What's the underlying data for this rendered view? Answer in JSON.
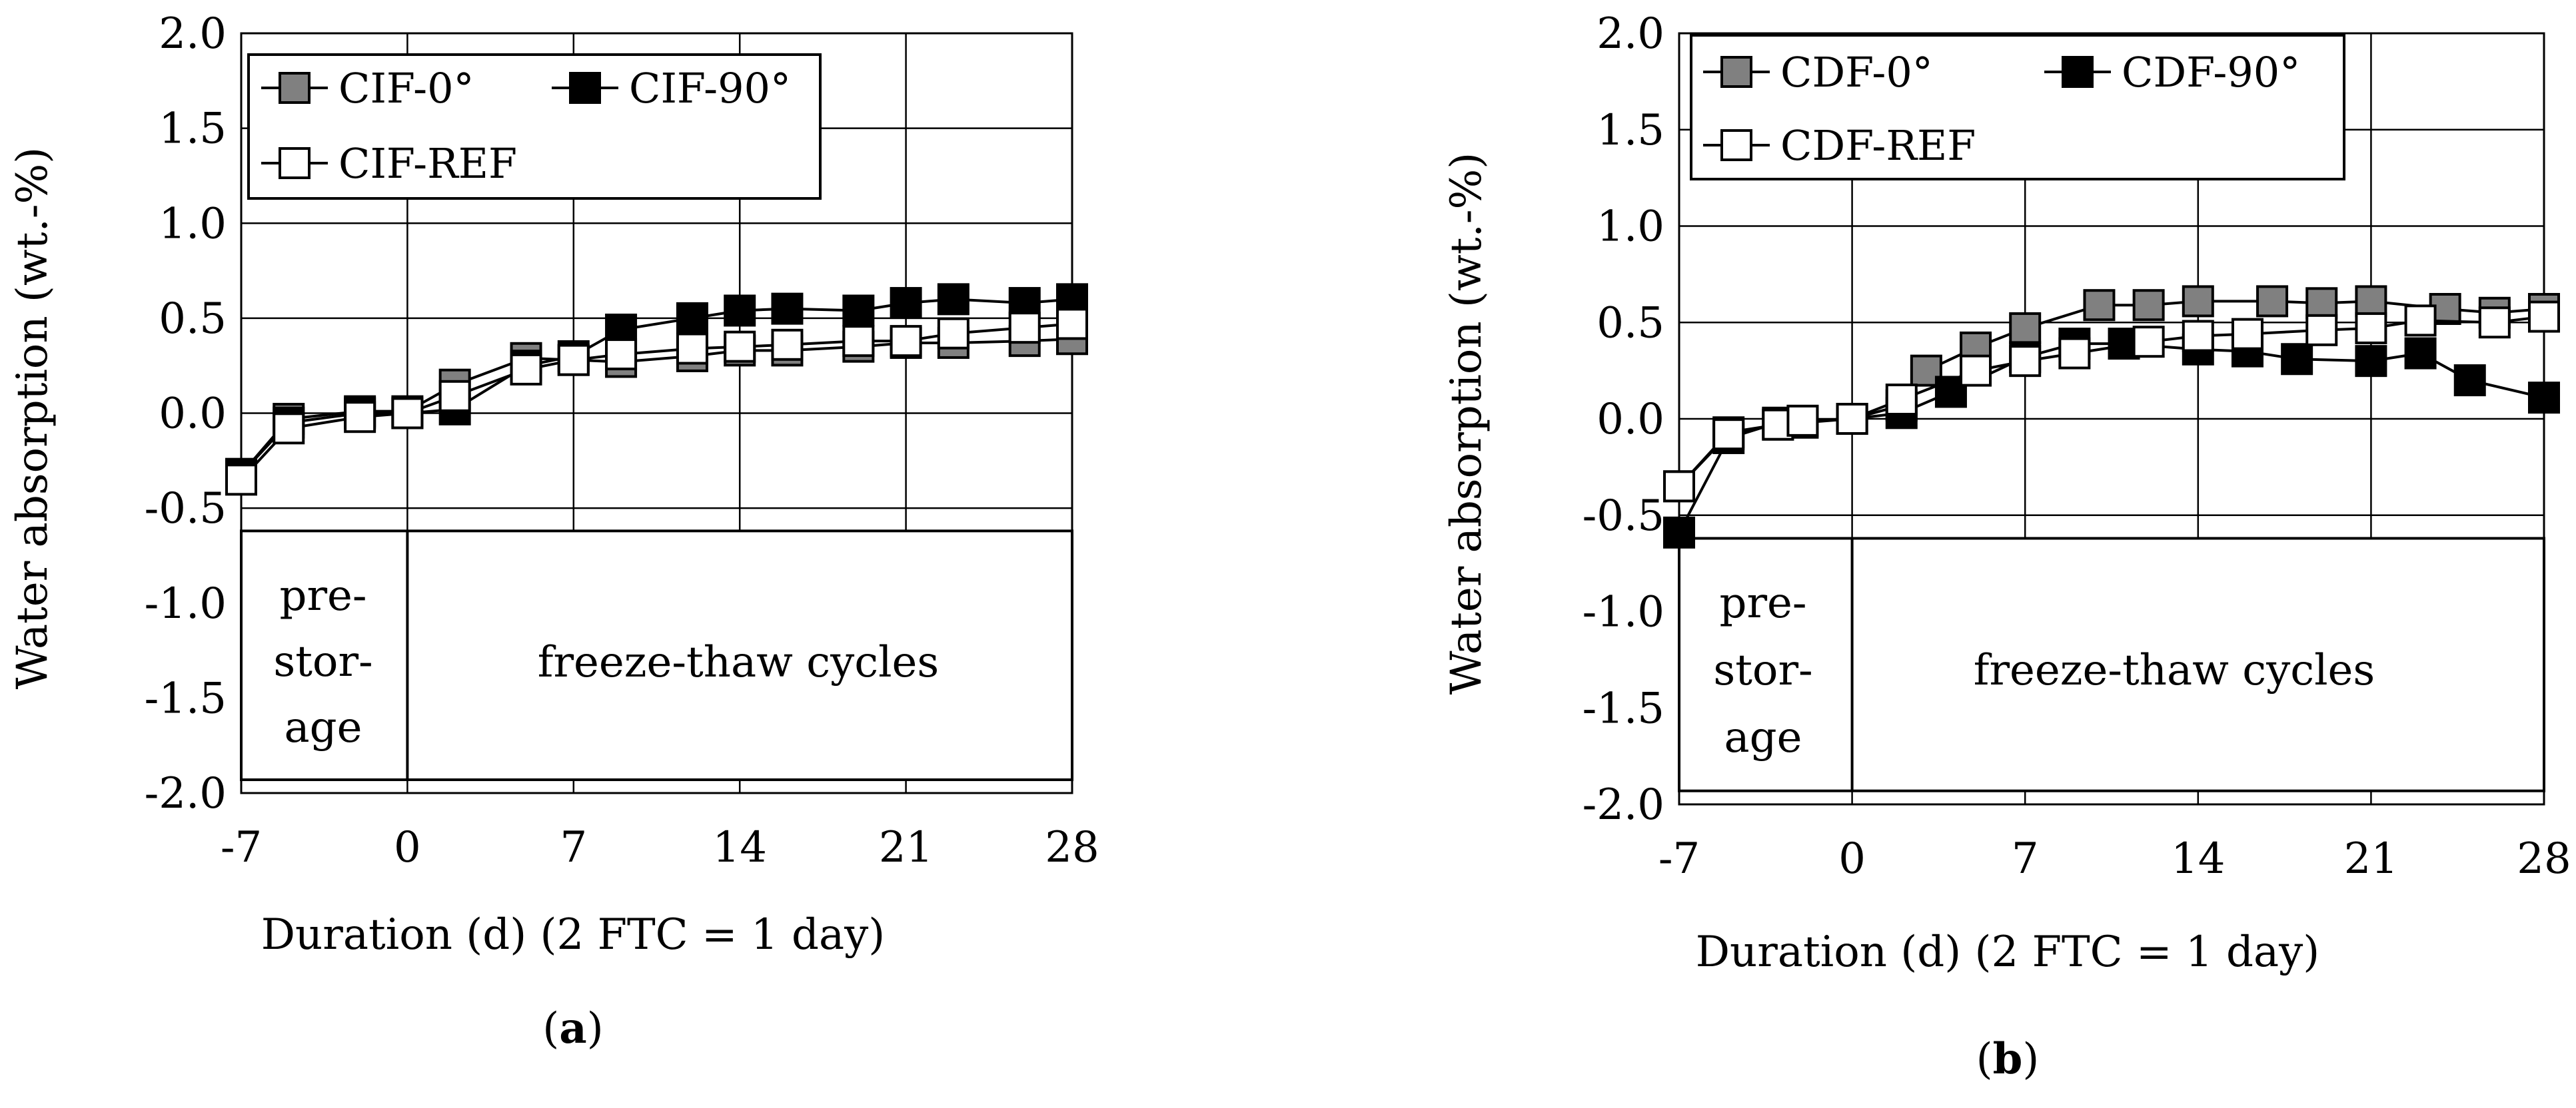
{
  "chart_data": [
    {
      "type": "line",
      "panel_label": "(a)",
      "panel_letter": "a",
      "xlabel": "Duration (d) (2 FTC = 1 day)",
      "ylabel": "Water absorption  (wt.-%)",
      "xlim": [
        -7,
        28
      ],
      "ylim": [
        -2.0,
        2.0
      ],
      "x_ticks": [
        "-7",
        "0",
        "7",
        "14",
        "21",
        "28"
      ],
      "y_ticks": [
        "2.0",
        "1.5",
        "1.0",
        "0.5",
        "0.0",
        "-0.5",
        "-1.0",
        "-1.5",
        "-2.0"
      ],
      "grid": true,
      "legend_position": "top-left",
      "band": {
        "prestorage_label": [
          "pre-",
          "stor-",
          "age"
        ],
        "ftc_label": "freeze-thaw cycles",
        "split_x": 0,
        "top_y": -0.62,
        "bottom_y": -1.93
      },
      "series": [
        {
          "name": "CIF-0°",
          "marker": "square",
          "fill": "#808080",
          "x": [
            -7,
            -5,
            -2,
            0,
            2,
            5,
            7,
            9,
            12,
            14,
            16,
            19,
            21,
            23,
            26,
            28
          ],
          "y": [
            -0.32,
            -0.03,
            0.01,
            0.01,
            0.15,
            0.29,
            0.28,
            0.27,
            0.3,
            0.33,
            0.33,
            0.35,
            0.37,
            0.37,
            0.38,
            0.39
          ]
        },
        {
          "name": "CIF-90°",
          "marker": "square",
          "fill": "#000000",
          "x": [
            -7,
            -5,
            -2,
            0,
            2,
            5,
            7,
            9,
            12,
            14,
            16,
            19,
            21,
            23,
            26,
            28
          ],
          "y": [
            -0.32,
            -0.05,
            0.0,
            0.0,
            0.02,
            0.25,
            0.3,
            0.44,
            0.5,
            0.54,
            0.55,
            0.54,
            0.58,
            0.6,
            0.58,
            0.6
          ]
        },
        {
          "name": "CIF-REF",
          "marker": "square",
          "fill": "#ffffff",
          "x": [
            -7,
            -5,
            -2,
            0,
            2,
            5,
            7,
            9,
            12,
            14,
            16,
            19,
            21,
            23,
            26,
            28
          ],
          "y": [
            -0.35,
            -0.08,
            -0.02,
            0.0,
            0.09,
            0.23,
            0.28,
            0.31,
            0.34,
            0.35,
            0.36,
            0.38,
            0.38,
            0.42,
            0.45,
            0.47
          ]
        }
      ]
    },
    {
      "type": "line",
      "panel_label": "(b)",
      "panel_letter": "b",
      "xlabel": "Duration (d) (2 FTC = 1 day)",
      "ylabel": "Water absorption  (wt.-%)",
      "xlim": [
        -7,
        28
      ],
      "ylim": [
        -2.0,
        2.0
      ],
      "x_ticks": [
        "-7",
        "0",
        "7",
        "14",
        "21",
        "28"
      ],
      "y_ticks": [
        "2.0",
        "1.5",
        "1.0",
        "0.5",
        "0.0",
        "-0.5",
        "-1.0",
        "-1.5",
        "-2.0"
      ],
      "grid": true,
      "legend_position": "top-left",
      "band": {
        "prestorage_label": [
          "pre-",
          "stor-",
          "age"
        ],
        "ftc_label": "freeze-thaw cycles",
        "split_x": 0,
        "top_y": -0.62,
        "bottom_y": -1.93
      },
      "series": [
        {
          "name": "CDF-0°",
          "marker": "square",
          "fill": "#808080",
          "x": [
            -7,
            -5,
            -3,
            -2,
            0,
            2,
            3,
            5,
            7,
            10,
            12,
            14,
            17,
            19,
            21,
            24,
            26,
            28
          ],
          "y": [
            -0.35,
            -0.07,
            -0.03,
            -0.02,
            0.0,
            0.07,
            0.25,
            0.37,
            0.47,
            0.59,
            0.59,
            0.61,
            0.61,
            0.6,
            0.61,
            0.57,
            0.55,
            0.57
          ]
        },
        {
          "name": "CDF-90°",
          "marker": "square",
          "fill": "#000000",
          "x": [
            -7,
            -5,
            -3,
            -2,
            0,
            2,
            4,
            7,
            9,
            11,
            14,
            16,
            18,
            21,
            23,
            25,
            28
          ],
          "y": [
            -0.59,
            -0.1,
            -0.02,
            -0.01,
            0.0,
            0.03,
            0.14,
            0.32,
            0.39,
            0.39,
            0.36,
            0.35,
            0.31,
            0.3,
            0.34,
            0.2,
            0.11
          ]
        },
        {
          "name": "CDF-REF",
          "marker": "square",
          "fill": "#ffffff",
          "x": [
            -7,
            -5,
            -3,
            -2,
            0,
            2,
            5,
            7,
            9,
            12,
            14,
            16,
            19,
            21,
            23,
            26,
            28
          ],
          "y": [
            -0.35,
            -0.08,
            -0.03,
            -0.01,
            0.0,
            0.1,
            0.25,
            0.3,
            0.34,
            0.4,
            0.43,
            0.44,
            0.46,
            0.47,
            0.51,
            0.5,
            0.53
          ]
        }
      ]
    }
  ]
}
